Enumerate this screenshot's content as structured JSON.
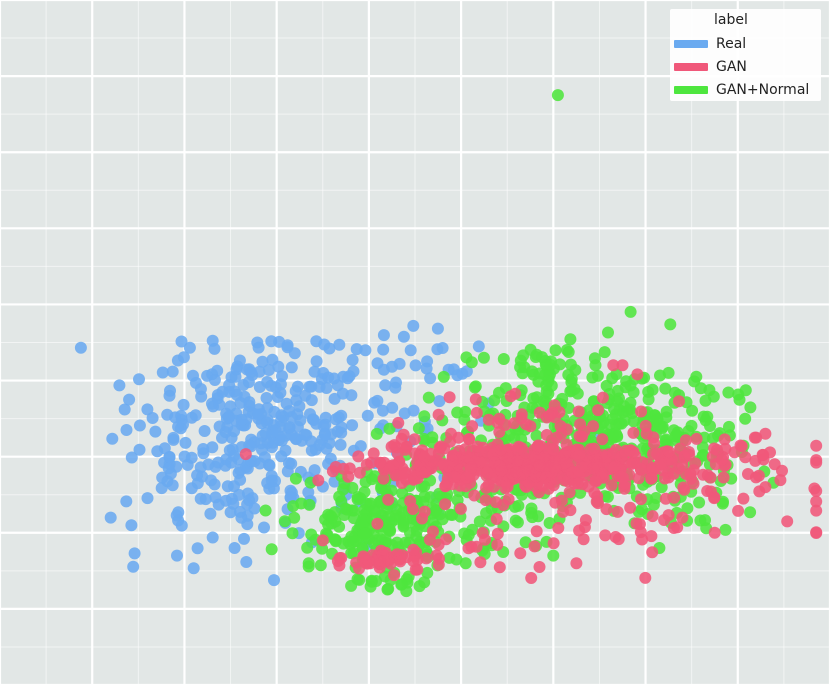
{
  "chart_data": {
    "type": "scatter",
    "xlim": [
      0,
      18
    ],
    "ylim": [
      0,
      9
    ],
    "grid": true,
    "background": "#e2e7e6",
    "legend": {
      "title": "label",
      "placement": "top-right",
      "entries": [
        {
          "name": "Real",
          "color": "#6aaaf0"
        },
        {
          "name": "GAN",
          "color": "#f0587a"
        },
        {
          "name": "GAN+Normal",
          "color": "#4ee63e"
        }
      ]
    },
    "series": [
      {
        "name": "Real",
        "color": "#6aaaf0",
        "clusters": [
          {
            "cx": 5.7,
            "cy": 3.25,
            "sx": 1.45,
            "sy": 0.72,
            "n": 360,
            "ymax": 4.55
          },
          {
            "cx": 9.0,
            "cy": 4.1,
            "sx": 0.85,
            "sy": 0.3,
            "n": 34
          }
        ],
        "points": [
          [
            2.4,
            2.2
          ],
          [
            2.8,
            3.75
          ],
          [
            9.0,
            1.75
          ],
          [
            10.6,
            3.7
          ],
          [
            12.9,
            3.3
          ],
          [
            8.9,
            3.2
          ],
          [
            8.6,
            3.4
          ],
          [
            9.5,
            2.25
          ]
        ]
      },
      {
        "name": "GAN",
        "color": "#f0587a",
        "clusters": [
          {
            "cx": 11.3,
            "cy": 2.88,
            "sx": 1.9,
            "sy": 0.13,
            "n": 380
          },
          {
            "cx": 12.5,
            "cy": 2.6,
            "sx": 2.2,
            "sy": 0.45,
            "n": 140
          },
          {
            "cx": 11.6,
            "cy": 3.2,
            "sx": 1.6,
            "sy": 0.35,
            "n": 90
          },
          {
            "cx": 8.3,
            "cy": 1.65,
            "sx": 0.65,
            "sy": 0.07,
            "n": 45
          },
          {
            "cx": 9.3,
            "cy": 1.7,
            "sx": 0.8,
            "sy": 0.15,
            "n": 18
          },
          {
            "cx": 15.2,
            "cy": 2.75,
            "sx": 1.0,
            "sy": 0.3,
            "n": 30
          }
        ],
        "points": [
          [
            7.0,
            1.9
          ],
          [
            13.3,
            4.2
          ],
          [
            13.5,
            4.2
          ],
          [
            16.6,
            3.3
          ],
          [
            16.4,
            3.25
          ],
          [
            16.8,
            2.9
          ],
          [
            16.6,
            2.6
          ],
          [
            15.5,
            2.0
          ],
          [
            11.7,
            1.55
          ],
          [
            12.5,
            1.6
          ]
        ]
      },
      {
        "name": "GAN+Normal",
        "color": "#4ee63e",
        "clusters": [
          {
            "cx": 8.3,
            "cy": 2.15,
            "sx": 0.9,
            "sy": 0.32,
            "n": 220
          },
          {
            "cx": 12.3,
            "cy": 3.25,
            "sx": 1.6,
            "sy": 0.45,
            "n": 320
          },
          {
            "cx": 14.3,
            "cy": 3.2,
            "sx": 1.1,
            "sy": 0.45,
            "n": 110
          },
          {
            "cx": 11.8,
            "cy": 4.25,
            "sx": 0.55,
            "sy": 0.18,
            "n": 35
          },
          {
            "cx": 8.3,
            "cy": 1.35,
            "sx": 0.35,
            "sy": 0.05,
            "n": 14
          },
          {
            "cx": 10.4,
            "cy": 2.2,
            "sx": 0.9,
            "sy": 0.3,
            "n": 40
          },
          {
            "cx": 14.8,
            "cy": 2.4,
            "sx": 0.6,
            "sy": 0.15,
            "n": 18
          }
        ],
        "points": [
          [
            12.1,
            7.75
          ],
          [
            9.2,
            1.35
          ],
          [
            9.1,
            1.3
          ],
          [
            7.2,
            2.2
          ],
          [
            10.1,
            1.6
          ],
          [
            12.0,
            1.7
          ],
          [
            14.3,
            1.8
          ],
          [
            13.6,
            3.6
          ],
          [
            15.2,
            3.9
          ],
          [
            14.5,
            4.1
          ],
          [
            15.1,
            4.05
          ]
        ]
      }
    ]
  }
}
